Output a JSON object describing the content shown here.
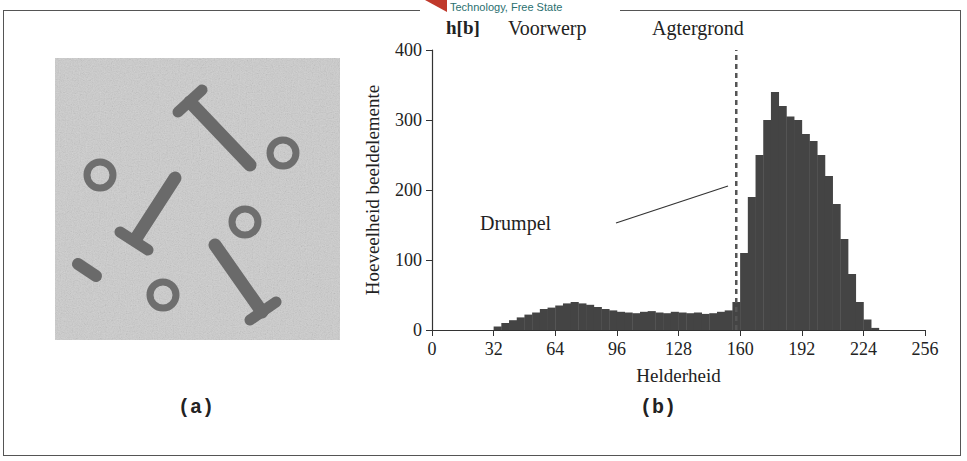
{
  "header": "Technology, Free State",
  "panels": {
    "a": "(a)",
    "b": "(b)"
  },
  "chart_data": {
    "type": "histogram",
    "title": "h[b]",
    "annotations": [
      "Voorwerp",
      "Agtergrond"
    ],
    "threshold": {
      "label": "Drumpel",
      "value": 158
    },
    "xlabel": "Helderheid",
    "ylabel": "Hoeveelheid beeldelemente",
    "bins": [
      32,
      36,
      40,
      44,
      48,
      52,
      56,
      60,
      64,
      68,
      72,
      76,
      80,
      84,
      88,
      92,
      96,
      100,
      104,
      108,
      112,
      116,
      120,
      124,
      128,
      132,
      136,
      140,
      144,
      148,
      152,
      156,
      160,
      164,
      168,
      172,
      176,
      180,
      184,
      188,
      192,
      196,
      200,
      204,
      208,
      212,
      216,
      220,
      224,
      228,
      232
    ],
    "counts": [
      5,
      10,
      14,
      18,
      22,
      25,
      30,
      32,
      35,
      38,
      40,
      38,
      36,
      33,
      30,
      28,
      26,
      25,
      24,
      26,
      27,
      25,
      24,
      26,
      25,
      24,
      25,
      23,
      24,
      26,
      28,
      40,
      110,
      190,
      250,
      300,
      340,
      320,
      305,
      300,
      280,
      270,
      250,
      220,
      180,
      130,
      80,
      40,
      15,
      3
    ],
    "color": "#444444",
    "xlim": [
      0,
      256
    ],
    "xticks": [
      0,
      32,
      64,
      96,
      128,
      160,
      192,
      224,
      256
    ],
    "ylim": [
      0,
      400
    ],
    "yticks": [
      0,
      100,
      200,
      300,
      400
    ],
    "grid": false
  }
}
